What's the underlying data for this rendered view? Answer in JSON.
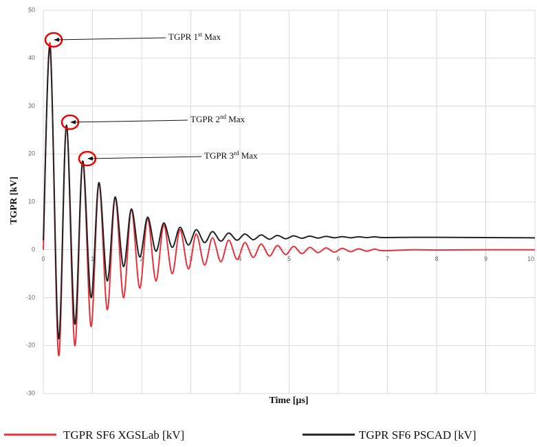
{
  "chart_data": {
    "type": "line",
    "x_label": "Time [µs]",
    "y_label": "TGPR [kV]",
    "xlim": [
      0,
      10
    ],
    "xticks": [
      0,
      1,
      2,
      3,
      4,
      5,
      6,
      7,
      8,
      9,
      10
    ],
    "ylim": [
      -30,
      50
    ],
    "yticks": [
      -30,
      -20,
      -10,
      0,
      10,
      20,
      30,
      40,
      50
    ],
    "grid": true,
    "legend": "bottom",
    "x": [
      0,
      0.14,
      0.31,
      0.47,
      0.64,
      0.8,
      0.97,
      1.13,
      1.3,
      1.46,
      1.63,
      1.79,
      1.96,
      2.12,
      2.29,
      2.45,
      2.62,
      2.78,
      2.95,
      3.11,
      3.28,
      3.44,
      3.61,
      3.77,
      3.94,
      4.1,
      4.27,
      4.43,
      4.6,
      4.76,
      4.93,
      5.09,
      5.26,
      5.42,
      5.59,
      5.75,
      5.92,
      6.08,
      6.25,
      6.41,
      6.58,
      6.74,
      6.91,
      7.5,
      8,
      9,
      10
    ],
    "series": [
      {
        "name": "TGPR SF6 XGSLab [kV]",
        "color": "#e8303a",
        "values": [
          0,
          43,
          -22,
          26,
          -20,
          18.5,
          -16,
          14,
          -12.5,
          11,
          -10,
          8.5,
          -8,
          6.5,
          -6.5,
          5.2,
          -5,
          4.2,
          -4,
          3.3,
          -3.2,
          2.5,
          -2.5,
          2,
          -2,
          1.5,
          -1.6,
          1.2,
          -1.3,
          0.9,
          -1,
          0.7,
          -0.8,
          0.5,
          -0.6,
          0.4,
          -0.5,
          0.3,
          -0.4,
          0.2,
          -0.3,
          0.15,
          -0.2,
          0,
          -0.05,
          0,
          0
        ]
      },
      {
        "name": "TGPR SF6 PSCAD [kV]",
        "color": "#222222",
        "values": [
          2,
          42,
          -18.5,
          26,
          -15.5,
          18.5,
          -10,
          14,
          -6.5,
          11,
          -3.5,
          8.5,
          -1.5,
          6.8,
          -0.3,
          5.6,
          0.5,
          4.7,
          1,
          4.2,
          1.5,
          3.8,
          1.8,
          3.5,
          2,
          3.3,
          2.1,
          3.1,
          2.2,
          3,
          2.3,
          2.9,
          2.4,
          2.85,
          2.45,
          2.8,
          2.5,
          2.75,
          2.5,
          2.7,
          2.55,
          2.7,
          2.55,
          2.6,
          2.6,
          2.55,
          2.5
        ]
      }
    ],
    "annotations": [
      {
        "text": "TGPR 1",
        "sup": "st",
        "rest": " Max"
      },
      {
        "text": "TGPR 2",
        "sup": "nd",
        "rest": " Max"
      },
      {
        "text": "TGPR 3",
        "sup": "rd",
        "rest": " Max"
      }
    ]
  }
}
